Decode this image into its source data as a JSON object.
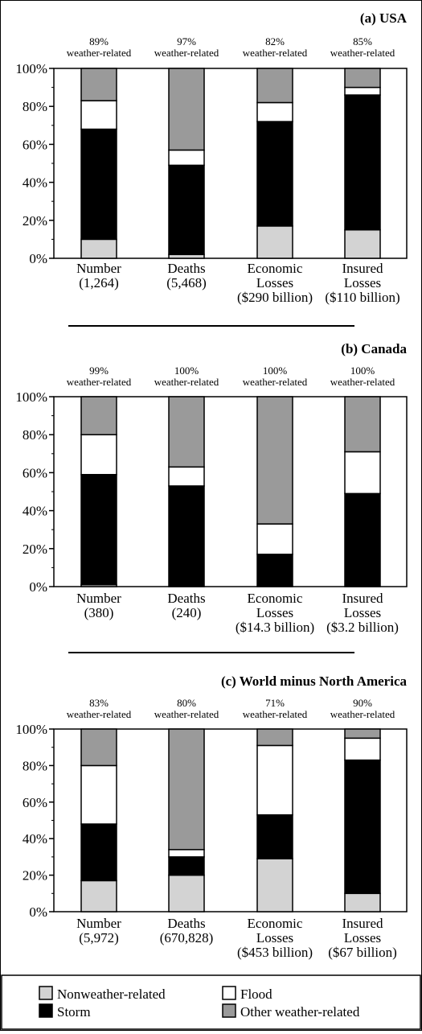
{
  "legend": {
    "items": [
      {
        "key": "nonweather",
        "label": "Nonweather-related",
        "color": "#d3d3d3"
      },
      {
        "key": "flood",
        "label": "Flood",
        "color": "#ffffff"
      },
      {
        "key": "storm",
        "label": "Storm",
        "color": "#000000"
      },
      {
        "key": "other",
        "label": "Other weather-related",
        "color": "#9a9a9a"
      }
    ]
  },
  "chart_data": [
    {
      "type": "bar",
      "stacked": true,
      "title": "(a) USA",
      "y_ticks": [
        "100%",
        "80%",
        "60%",
        "40%",
        "20%",
        "0%"
      ],
      "ylim": [
        0,
        100
      ],
      "categories": [
        {
          "label": [
            "Number",
            "(1,264)"
          ],
          "header": [
            "89%",
            "weather-related"
          ]
        },
        {
          "label": [
            "Deaths",
            "(5,468)"
          ],
          "header": [
            "97%",
            "weather-related"
          ]
        },
        {
          "label": [
            "Economic",
            "Losses",
            "($290 billion)"
          ],
          "header": [
            "82%",
            "weather-related"
          ]
        },
        {
          "label": [
            "Insured",
            "Losses",
            "($110 billion)"
          ],
          "header": [
            "85%",
            "weather-related"
          ]
        }
      ],
      "series": [
        {
          "key": "nonweather",
          "values": [
            10,
            2,
            17,
            15
          ]
        },
        {
          "key": "storm",
          "values": [
            58,
            47,
            55,
            71
          ]
        },
        {
          "key": "flood",
          "values": [
            15,
            8,
            10,
            4
          ]
        },
        {
          "key": "other",
          "values": [
            17,
            43,
            18,
            10
          ]
        }
      ]
    },
    {
      "type": "bar",
      "stacked": true,
      "title": "(b) Canada",
      "y_ticks": [
        "100%",
        "80%",
        "60%",
        "40%",
        "20%",
        "0%"
      ],
      "ylim": [
        0,
        100
      ],
      "categories": [
        {
          "label": [
            "Number",
            "(380)"
          ],
          "header": [
            "99%",
            "weather-related"
          ]
        },
        {
          "label": [
            "Deaths",
            "(240)"
          ],
          "header": [
            "100%",
            "weather-related"
          ]
        },
        {
          "label": [
            "Economic",
            "Losses",
            "($14.3 billion)"
          ],
          "header": [
            "100%",
            "weather-related"
          ]
        },
        {
          "label": [
            "Insured",
            "Losses",
            "($3.2 billion)"
          ],
          "header": [
            "100%",
            "weather-related"
          ]
        }
      ],
      "series": [
        {
          "key": "nonweather",
          "values": [
            1,
            0,
            0,
            0
          ]
        },
        {
          "key": "storm",
          "values": [
            58,
            53,
            17,
            49
          ]
        },
        {
          "key": "flood",
          "values": [
            21,
            10,
            16,
            22
          ]
        },
        {
          "key": "other",
          "values": [
            20,
            37,
            67,
            29
          ]
        }
      ]
    },
    {
      "type": "bar",
      "stacked": true,
      "title": "(c) World minus North America",
      "y_ticks": [
        "100%",
        "80%",
        "60%",
        "40%",
        "20%",
        "0%"
      ],
      "ylim": [
        0,
        100
      ],
      "categories": [
        {
          "label": [
            "Number",
            "(5,972)"
          ],
          "header": [
            "83%",
            "weather-related"
          ]
        },
        {
          "label": [
            "Deaths",
            "(670,828)"
          ],
          "header": [
            "80%",
            "weather-related"
          ]
        },
        {
          "label": [
            "Economic",
            "Losses",
            "($453 billion)"
          ],
          "header": [
            "71%",
            "weather-related"
          ]
        },
        {
          "label": [
            "Insured",
            "Losses",
            "($67 billion)"
          ],
          "header": [
            "90%",
            "weather-related"
          ]
        }
      ],
      "series": [
        {
          "key": "nonweather",
          "values": [
            17,
            20,
            29,
            10
          ]
        },
        {
          "key": "storm",
          "values": [
            31,
            10,
            24,
            73
          ]
        },
        {
          "key": "flood",
          "values": [
            32,
            4,
            38,
            12
          ]
        },
        {
          "key": "other",
          "values": [
            20,
            66,
            9,
            5
          ]
        }
      ]
    }
  ]
}
